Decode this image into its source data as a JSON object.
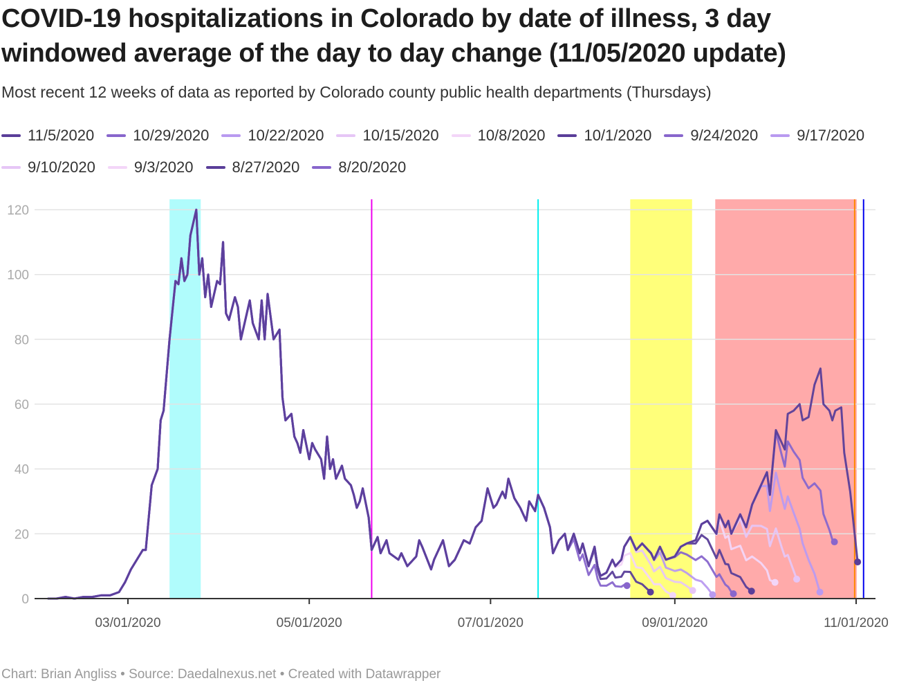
{
  "chart_data": {
    "type": "line",
    "title": "COVID-19 hospitalizations in Colorado by date of illness, 3 day windowed average of the day to day change (11/05/2020 update)",
    "subtitle": "Most recent 12 weeks of data as reported by Colorado county public health departments (Thursdays)",
    "footer": "Chart: Brian Angliss • Source: Daedalnexus.net • Created with Datawrapper",
    "x_unit": "days since 2020-03-01",
    "xlim": [
      -27,
      248
    ],
    "ylim": [
      0,
      123
    ],
    "y_ticks": [
      0,
      20,
      40,
      60,
      80,
      100,
      120
    ],
    "y_tick_labels": [
      "0",
      "20",
      "40",
      "60",
      "80",
      "100",
      "120"
    ],
    "x_ticks": [
      0,
      61,
      122,
      184,
      245
    ],
    "x_tick_labels": [
      "03/01/2020",
      "05/01/2020",
      "07/01/2020",
      "09/01/2020",
      "11/01/2020"
    ],
    "grid": true,
    "legend_placement": "top",
    "base_series": {
      "x": [
        -27,
        -24,
        -21,
        -18,
        -15,
        -12,
        -9,
        -6,
        -3,
        -1,
        1,
        5,
        6,
        8,
        10,
        11,
        12,
        14,
        16,
        17,
        18,
        19,
        20,
        21,
        23,
        24,
        25,
        26,
        27,
        28,
        30,
        31,
        32,
        33,
        34,
        36,
        37,
        38,
        40,
        41,
        42,
        44,
        45,
        46,
        47,
        49,
        51,
        52,
        53,
        55,
        56,
        57,
        58,
        59,
        61,
        62,
        63,
        65,
        66,
        67,
        68,
        69,
        70,
        72,
        73,
        75,
        76,
        77,
        78,
        79,
        81,
        82,
        84,
        85,
        87,
        88,
        91,
        92,
        94,
        97,
        98,
        99,
        102,
        103,
        106,
        108,
        110,
        112,
        113,
        115,
        117,
        119,
        121,
        123,
        124,
        126,
        127,
        128,
        130,
        132,
        134,
        135,
        137,
        138,
        140,
        142,
        143,
        145,
        147,
        148,
        150,
        152,
        153,
        155,
        157,
        158,
        159,
        161,
        163,
        164,
        166,
        167,
        169,
        171,
        173,
        176,
        177,
        179,
        181,
        184,
        186,
        188,
        191,
        193,
        195,
        198,
        199,
        201,
        202,
        203,
        206,
        208,
        210,
        213,
        215,
        216,
        218,
        220,
        221,
        222,
        224,
        226,
        227,
        229,
        231,
        233,
        234,
        236,
        237,
        238,
        240,
        241,
        243,
        245.5
      ],
      "y": [
        0,
        0,
        0.5,
        0,
        0.5,
        0.5,
        1,
        1,
        2,
        5,
        9,
        15,
        15,
        35,
        40,
        55,
        58,
        80,
        98,
        97,
        105,
        98,
        100,
        112,
        120,
        100,
        105,
        93,
        100,
        90,
        98,
        97,
        110,
        88,
        86,
        93,
        90,
        80,
        88,
        92,
        85,
        80,
        92,
        80,
        94,
        80,
        83,
        62,
        55,
        57,
        50,
        48,
        45,
        52,
        43,
        48,
        46,
        43,
        37,
        50,
        40,
        43,
        37,
        41,
        37,
        35,
        32,
        28,
        30,
        34,
        25,
        15,
        19,
        14,
        18,
        14,
        12,
        14,
        10,
        13,
        18,
        16,
        9,
        12,
        18,
        10,
        12,
        16,
        18,
        17,
        22,
        24,
        34,
        28,
        29,
        33,
        31,
        37,
        31,
        28,
        24,
        30,
        27,
        32,
        28,
        22,
        14,
        18,
        20,
        15,
        20,
        14,
        17,
        10,
        16,
        10,
        7,
        8,
        12,
        10,
        12,
        16,
        19,
        15,
        17,
        14,
        12,
        16,
        12,
        13,
        16,
        17,
        18,
        23,
        24,
        20,
        26,
        22,
        24,
        20,
        26,
        22,
        29,
        35,
        39,
        32,
        52,
        48,
        46,
        57,
        58,
        60,
        55,
        56,
        66,
        71,
        60,
        58,
        55,
        58,
        59,
        45,
        33,
        11.3
      ]
    },
    "series": [
      {
        "name": "8/20/2020",
        "end_day": 167.9,
        "end_value": 4,
        "color": "#8866cc"
      },
      {
        "name": "8/27/2020",
        "end_day": 175.8,
        "end_value": 2,
        "color": "#5a3e99"
      },
      {
        "name": "9/3/2020",
        "end_day": 183.3,
        "end_value": 1,
        "color": "#f3d6f8"
      },
      {
        "name": "9/10/2020",
        "end_day": 190,
        "end_value": 2.5,
        "color": "#e6c6f6"
      },
      {
        "name": "9/17/2020",
        "end_day": 196.7,
        "end_value": 1.2,
        "color": "#b99af0"
      },
      {
        "name": "9/24/2020",
        "end_day": 203.7,
        "end_value": 1.5,
        "color": "#8866cc"
      },
      {
        "name": "10/1/2020",
        "end_day": 209.8,
        "end_value": 2.3,
        "color": "#5a3e99"
      },
      {
        "name": "10/8/2020",
        "end_day": 217.7,
        "end_value": 5,
        "color": "#f3d6f8"
      },
      {
        "name": "10/15/2020",
        "end_day": 225,
        "end_value": 6,
        "color": "#e6c6f6"
      },
      {
        "name": "10/22/2020",
        "end_day": 232.8,
        "end_value": 2,
        "color": "#b99af0"
      },
      {
        "name": "10/29/2020",
        "end_day": 237.7,
        "end_value": 17.5,
        "color": "#8866cc"
      },
      {
        "name": "11/5/2020",
        "end_day": 245.5,
        "end_value": 11.3,
        "color": "#5a3e99"
      }
    ],
    "legend_order": [
      "11/5/2020",
      "10/29/2020",
      "10/22/2020",
      "10/15/2020",
      "10/8/2020",
      "10/1/2020",
      "9/24/2020",
      "9/17/2020",
      "9/10/2020",
      "9/3/2020",
      "8/27/2020",
      "8/20/2020"
    ],
    "annotations": {
      "bands": [
        {
          "from": 14,
          "to": 24.5,
          "color": "#b0fcfc"
        },
        {
          "from": 169,
          "to": 189.8,
          "color": "#ffff7a"
        },
        {
          "from": 197.6,
          "to": 245.2,
          "color": "#ffaaaa"
        }
      ],
      "lines": [
        {
          "at": 82,
          "color": "#ee00ee"
        },
        {
          "at": 138,
          "color": "#00eeee"
        },
        {
          "at": 244.5,
          "color": "#ff8800"
        },
        {
          "at": 247.5,
          "color": "#0000ee"
        }
      ]
    }
  }
}
